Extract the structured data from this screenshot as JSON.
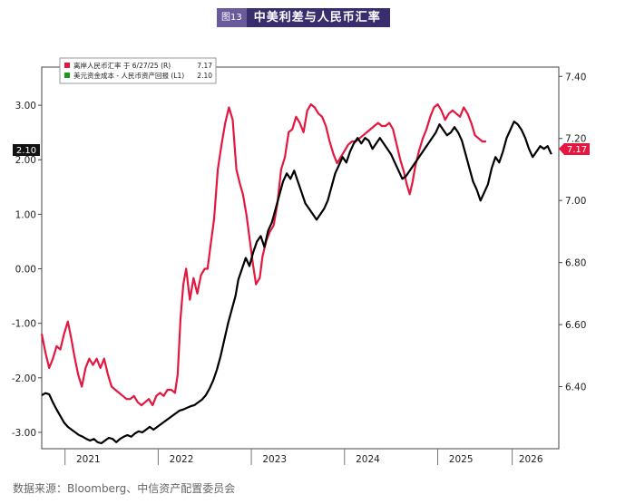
{
  "header": {
    "badge": "图13",
    "title": "中美利差与人民币汇率"
  },
  "source": "数据来源：Bloomberg、中信资产配置委员会",
  "chart_data": {
    "type": "line",
    "legend": {
      "placement": "top-left",
      "items": [
        {
          "label": "离岸人民币汇率  于  6/27/25  (R)",
          "value": "7.17",
          "color": "#e3173f"
        },
        {
          "label": "美元资金成本 - 人民币资产回报  (L1)",
          "value": "2.10",
          "color": "#1a9a1a"
        }
      ]
    },
    "x_axis": {
      "range": [
        2020.75,
        2026.3
      ],
      "ticks": [
        {
          "label": "2021",
          "pos": 2021.25
        },
        {
          "label": "2022",
          "pos": 2022.25
        },
        {
          "label": "2023",
          "pos": 2023.25
        },
        {
          "label": "2024",
          "pos": 2024.25
        },
        {
          "label": "2025",
          "pos": 2025.25
        },
        {
          "label": "2026",
          "pos": 2026.0
        }
      ],
      "separators": [
        2021.0,
        2022.0,
        2023.0,
        2024.0,
        2025.0,
        2025.8
      ]
    },
    "y_left": {
      "range": [
        -3.3,
        3.7
      ],
      "ticks": [
        {
          "label": "3.00",
          "v": 3.0
        },
        {
          "label": "2.00",
          "v": 2.0
        },
        {
          "label": "1.00",
          "v": 1.0
        },
        {
          "label": "0.00",
          "v": 0.0
        },
        {
          "label": "-1.00",
          "v": -1.0
        },
        {
          "label": "-2.00",
          "v": -2.0
        },
        {
          "label": "-3.00",
          "v": -3.0
        }
      ],
      "last_value_label": "2.10"
    },
    "y_right": {
      "range": [
        6.2,
        7.43
      ],
      "ticks": [
        {
          "label": "7.40",
          "v": 7.4
        },
        {
          "label": "7.20",
          "v": 7.2
        },
        {
          "label": "7.00",
          "v": 7.0
        },
        {
          "label": "6.80",
          "v": 6.8
        },
        {
          "label": "6.60",
          "v": 6.6
        },
        {
          "label": "6.40",
          "v": 6.4
        }
      ],
      "last_value_label": "7.17"
    },
    "series": [
      {
        "name": "离岸人民币汇率",
        "axis": "right",
        "color": "#e3173f",
        "points": [
          [
            2020.75,
            6.57
          ],
          [
            2020.79,
            6.51
          ],
          [
            2020.83,
            6.46
          ],
          [
            2020.87,
            6.49
          ],
          [
            2020.91,
            6.53
          ],
          [
            2020.95,
            6.52
          ],
          [
            2020.99,
            6.57
          ],
          [
            2021.03,
            6.61
          ],
          [
            2021.07,
            6.55
          ],
          [
            2021.1,
            6.5
          ],
          [
            2021.14,
            6.44
          ],
          [
            2021.18,
            6.4
          ],
          [
            2021.22,
            6.46
          ],
          [
            2021.26,
            6.49
          ],
          [
            2021.3,
            6.47
          ],
          [
            2021.34,
            6.49
          ],
          [
            2021.38,
            6.46
          ],
          [
            2021.42,
            6.49
          ],
          [
            2021.46,
            6.44
          ],
          [
            2021.5,
            6.4
          ],
          [
            2021.54,
            6.39
          ],
          [
            2021.58,
            6.38
          ],
          [
            2021.62,
            6.37
          ],
          [
            2021.66,
            6.36
          ],
          [
            2021.7,
            6.36
          ],
          [
            2021.74,
            6.37
          ],
          [
            2021.78,
            6.35
          ],
          [
            2021.82,
            6.34
          ],
          [
            2021.86,
            6.35
          ],
          [
            2021.9,
            6.36
          ],
          [
            2021.94,
            6.34
          ],
          [
            2021.98,
            6.37
          ],
          [
            2022.02,
            6.38
          ],
          [
            2022.06,
            6.37
          ],
          [
            2022.1,
            6.39
          ],
          [
            2022.14,
            6.39
          ],
          [
            2022.18,
            6.38
          ],
          [
            2022.21,
            6.44
          ],
          [
            2022.24,
            6.62
          ],
          [
            2022.27,
            6.73
          ],
          [
            2022.3,
            6.78
          ],
          [
            2022.34,
            6.68
          ],
          [
            2022.38,
            6.75
          ],
          [
            2022.42,
            6.7
          ],
          [
            2022.46,
            6.76
          ],
          [
            2022.5,
            6.78
          ],
          [
            2022.53,
            6.78
          ],
          [
            2022.56,
            6.85
          ],
          [
            2022.6,
            6.94
          ],
          [
            2022.64,
            7.1
          ],
          [
            2022.68,
            7.18
          ],
          [
            2022.72,
            7.25
          ],
          [
            2022.76,
            7.3
          ],
          [
            2022.8,
            7.26
          ],
          [
            2022.84,
            7.1
          ],
          [
            2022.88,
            7.05
          ],
          [
            2022.91,
            7.02
          ],
          [
            2022.95,
            6.95
          ],
          [
            2022.98,
            6.88
          ],
          [
            2023.02,
            6.79
          ],
          [
            2023.05,
            6.73
          ],
          [
            2023.09,
            6.75
          ],
          [
            2023.12,
            6.82
          ],
          [
            2023.16,
            6.87
          ],
          [
            2023.2,
            6.9
          ],
          [
            2023.24,
            6.92
          ],
          [
            2023.28,
            6.99
          ],
          [
            2023.32,
            7.1
          ],
          [
            2023.36,
            7.14
          ],
          [
            2023.4,
            7.22
          ],
          [
            2023.44,
            7.23
          ],
          [
            2023.48,
            7.27
          ],
          [
            2023.52,
            7.25
          ],
          [
            2023.56,
            7.22
          ],
          [
            2023.6,
            7.29
          ],
          [
            2023.64,
            7.31
          ],
          [
            2023.68,
            7.3
          ],
          [
            2023.72,
            7.28
          ],
          [
            2023.76,
            7.27
          ],
          [
            2023.8,
            7.24
          ],
          [
            2023.84,
            7.19
          ],
          [
            2023.88,
            7.15
          ],
          [
            2023.92,
            7.12
          ],
          [
            2023.96,
            7.14
          ],
          [
            2024.0,
            7.16
          ],
          [
            2024.04,
            7.18
          ],
          [
            2024.08,
            7.19
          ],
          [
            2024.12,
            7.19
          ],
          [
            2024.16,
            7.2
          ],
          [
            2024.2,
            7.21
          ],
          [
            2024.24,
            7.22
          ],
          [
            2024.28,
            7.23
          ],
          [
            2024.32,
            7.24
          ],
          [
            2024.36,
            7.25
          ],
          [
            2024.4,
            7.24
          ],
          [
            2024.44,
            7.24
          ],
          [
            2024.48,
            7.25
          ],
          [
            2024.52,
            7.23
          ],
          [
            2024.56,
            7.18
          ],
          [
            2024.6,
            7.13
          ],
          [
            2024.64,
            7.09
          ],
          [
            2024.67,
            7.05
          ],
          [
            2024.7,
            7.02
          ],
          [
            2024.73,
            7.06
          ],
          [
            2024.76,
            7.11
          ],
          [
            2024.8,
            7.16
          ],
          [
            2024.84,
            7.2
          ],
          [
            2024.88,
            7.23
          ],
          [
            2024.92,
            7.27
          ],
          [
            2024.96,
            7.3
          ],
          [
            2025.0,
            7.31
          ],
          [
            2025.04,
            7.29
          ],
          [
            2025.08,
            7.26
          ],
          [
            2025.12,
            7.28
          ],
          [
            2025.16,
            7.29
          ],
          [
            2025.2,
            7.28
          ],
          [
            2025.24,
            7.27
          ],
          [
            2025.28,
            7.3
          ],
          [
            2025.32,
            7.28
          ],
          [
            2025.36,
            7.25
          ],
          [
            2025.4,
            7.21
          ],
          [
            2025.44,
            7.2
          ],
          [
            2025.48,
            7.19
          ],
          [
            2025.52,
            7.19
          ]
        ]
      },
      {
        "name": "美元资金成本 - 人民币资产回报",
        "axis": "left",
        "color": "#000000",
        "points": [
          [
            2020.75,
            -2.32
          ],
          [
            2020.79,
            -2.28
          ],
          [
            2020.83,
            -2.3
          ],
          [
            2020.87,
            -2.45
          ],
          [
            2020.91,
            -2.58
          ],
          [
            2020.95,
            -2.7
          ],
          [
            2020.99,
            -2.82
          ],
          [
            2021.03,
            -2.9
          ],
          [
            2021.07,
            -2.95
          ],
          [
            2021.11,
            -3.0
          ],
          [
            2021.15,
            -3.05
          ],
          [
            2021.19,
            -3.08
          ],
          [
            2021.23,
            -3.12
          ],
          [
            2021.27,
            -3.15
          ],
          [
            2021.31,
            -3.12
          ],
          [
            2021.35,
            -3.18
          ],
          [
            2021.39,
            -3.2
          ],
          [
            2021.43,
            -3.15
          ],
          [
            2021.47,
            -3.1
          ],
          [
            2021.51,
            -3.12
          ],
          [
            2021.55,
            -3.18
          ],
          [
            2021.59,
            -3.12
          ],
          [
            2021.63,
            -3.08
          ],
          [
            2021.67,
            -3.05
          ],
          [
            2021.71,
            -3.08
          ],
          [
            2021.75,
            -3.02
          ],
          [
            2021.79,
            -2.98
          ],
          [
            2021.83,
            -3.0
          ],
          [
            2021.87,
            -2.95
          ],
          [
            2021.91,
            -2.9
          ],
          [
            2021.95,
            -2.95
          ],
          [
            2021.99,
            -2.9
          ],
          [
            2022.03,
            -2.85
          ],
          [
            2022.07,
            -2.8
          ],
          [
            2022.11,
            -2.75
          ],
          [
            2022.15,
            -2.7
          ],
          [
            2022.19,
            -2.65
          ],
          [
            2022.23,
            -2.6
          ],
          [
            2022.27,
            -2.58
          ],
          [
            2022.31,
            -2.55
          ],
          [
            2022.35,
            -2.52
          ],
          [
            2022.39,
            -2.5
          ],
          [
            2022.43,
            -2.45
          ],
          [
            2022.47,
            -2.4
          ],
          [
            2022.51,
            -2.32
          ],
          [
            2022.55,
            -2.2
          ],
          [
            2022.59,
            -2.05
          ],
          [
            2022.63,
            -1.85
          ],
          [
            2022.67,
            -1.6
          ],
          [
            2022.71,
            -1.3
          ],
          [
            2022.75,
            -1.0
          ],
          [
            2022.79,
            -0.75
          ],
          [
            2022.83,
            -0.5
          ],
          [
            2022.86,
            -0.2
          ],
          [
            2022.9,
            0.0
          ],
          [
            2022.94,
            0.2
          ],
          [
            2022.98,
            0.05
          ],
          [
            2023.02,
            0.3
          ],
          [
            2023.06,
            0.5
          ],
          [
            2023.1,
            0.6
          ],
          [
            2023.14,
            0.4
          ],
          [
            2023.18,
            0.7
          ],
          [
            2023.22,
            0.85
          ],
          [
            2023.26,
            1.1
          ],
          [
            2023.3,
            1.35
          ],
          [
            2023.34,
            1.6
          ],
          [
            2023.38,
            1.75
          ],
          [
            2023.42,
            1.65
          ],
          [
            2023.46,
            1.8
          ],
          [
            2023.5,
            1.6
          ],
          [
            2023.54,
            1.4
          ],
          [
            2023.58,
            1.2
          ],
          [
            2023.62,
            1.1
          ],
          [
            2023.66,
            1.0
          ],
          [
            2023.7,
            0.9
          ],
          [
            2023.74,
            1.0
          ],
          [
            2023.78,
            1.1
          ],
          [
            2023.82,
            1.25
          ],
          [
            2023.86,
            1.5
          ],
          [
            2023.9,
            1.75
          ],
          [
            2023.94,
            1.9
          ],
          [
            2023.98,
            2.05
          ],
          [
            2024.02,
            1.95
          ],
          [
            2024.06,
            2.15
          ],
          [
            2024.1,
            2.3
          ],
          [
            2024.14,
            2.4
          ],
          [
            2024.18,
            2.3
          ],
          [
            2024.22,
            2.4
          ],
          [
            2024.26,
            2.35
          ],
          [
            2024.3,
            2.2
          ],
          [
            2024.34,
            2.3
          ],
          [
            2024.38,
            2.4
          ],
          [
            2024.42,
            2.3
          ],
          [
            2024.46,
            2.2
          ],
          [
            2024.5,
            2.1
          ],
          [
            2024.54,
            1.95
          ],
          [
            2024.58,
            1.8
          ],
          [
            2024.62,
            1.65
          ],
          [
            2024.66,
            1.7
          ],
          [
            2024.7,
            1.8
          ],
          [
            2024.74,
            1.9
          ],
          [
            2024.78,
            2.0
          ],
          [
            2024.82,
            2.1
          ],
          [
            2024.86,
            2.2
          ],
          [
            2024.9,
            2.3
          ],
          [
            2024.94,
            2.4
          ],
          [
            2024.98,
            2.5
          ],
          [
            2025.02,
            2.65
          ],
          [
            2025.06,
            2.55
          ],
          [
            2025.1,
            2.45
          ],
          [
            2025.14,
            2.5
          ],
          [
            2025.18,
            2.6
          ],
          [
            2025.22,
            2.5
          ],
          [
            2025.26,
            2.35
          ],
          [
            2025.3,
            2.1
          ],
          [
            2025.34,
            1.85
          ],
          [
            2025.38,
            1.6
          ],
          [
            2025.42,
            1.45
          ],
          [
            2025.46,
            1.25
          ],
          [
            2025.5,
            1.4
          ],
          [
            2025.54,
            1.55
          ],
          [
            2025.58,
            1.85
          ],
          [
            2025.62,
            2.05
          ],
          [
            2025.66,
            1.95
          ],
          [
            2025.7,
            2.15
          ],
          [
            2025.74,
            2.4
          ],
          [
            2025.78,
            2.55
          ],
          [
            2025.82,
            2.7
          ],
          [
            2025.86,
            2.65
          ],
          [
            2025.9,
            2.55
          ],
          [
            2025.94,
            2.4
          ],
          [
            2025.98,
            2.2
          ],
          [
            2026.02,
            2.05
          ],
          [
            2026.06,
            2.15
          ],
          [
            2026.1,
            2.25
          ],
          [
            2026.14,
            2.2
          ],
          [
            2026.18,
            2.25
          ],
          [
            2026.22,
            2.1
          ]
        ]
      }
    ]
  }
}
